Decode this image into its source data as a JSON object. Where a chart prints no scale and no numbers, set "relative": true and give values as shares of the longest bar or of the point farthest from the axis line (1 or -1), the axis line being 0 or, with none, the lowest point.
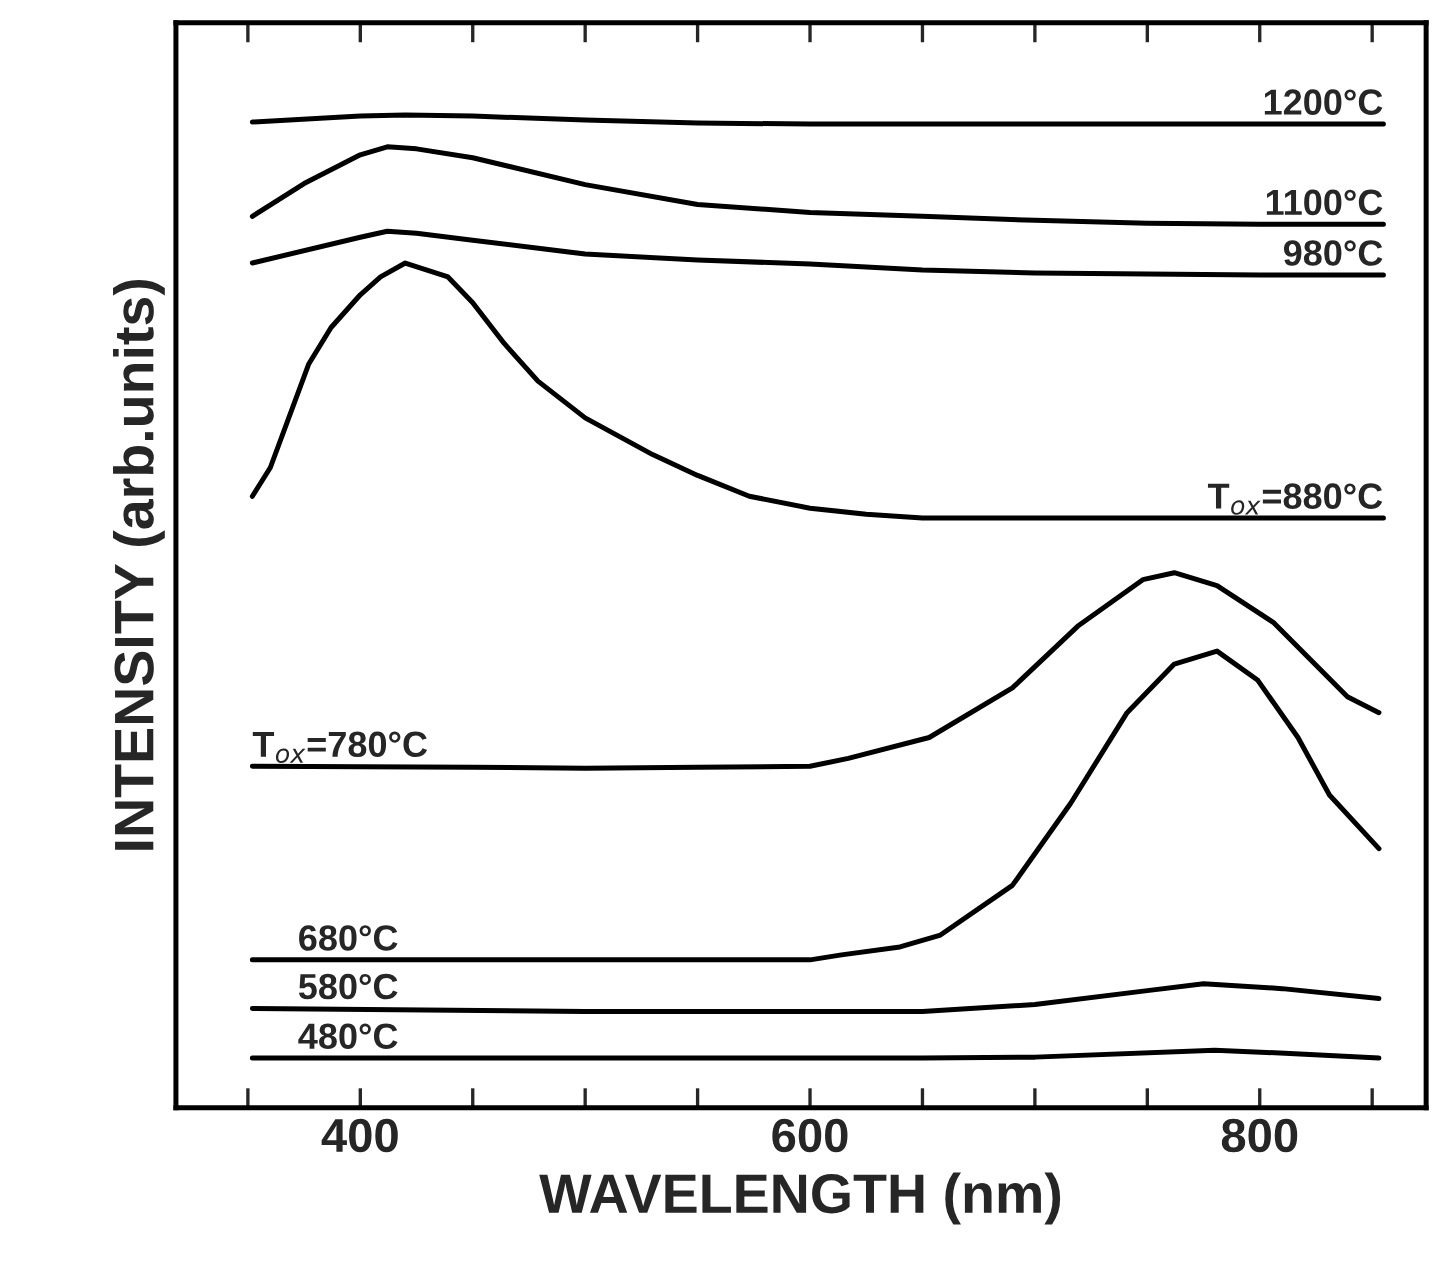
{
  "chart_data": {
    "type": "line",
    "relative": true,
    "xlabel": "WAVELENGTH (nm)",
    "ylabel": "INTENSITY (arb.units)",
    "xlim": [
      318,
      874
    ],
    "xticks": [
      {
        "value": 350,
        "label": null
      },
      400,
      {
        "value": 450,
        "label": null
      },
      {
        "value": 500,
        "label": null
      },
      {
        "value": 550,
        "label": null
      },
      600,
      {
        "value": 650,
        "label": null
      },
      {
        "value": 700,
        "label": null
      },
      {
        "value": 750,
        "label": null
      },
      800,
      {
        "value": 850,
        "label": null
      }
    ],
    "grid": false,
    "legend": false,
    "marker": "none",
    "line_style": "solid",
    "series": [
      {
        "name": "1200°C",
        "color": "#000000",
        "x": [
          352,
          400,
          420,
          450,
          500,
          550,
          600,
          700,
          800,
          855
        ],
        "values": [
          0.993,
          0.999,
          1.0,
          0.999,
          0.995,
          0.992,
          0.991,
          0.991,
          0.991,
          0.991
        ]
      },
      {
        "name": "1100°C",
        "color": "#000000",
        "x": [
          352,
          375,
          400,
          412,
          425,
          450,
          500,
          550,
          600,
          650,
          700,
          750,
          800,
          855
        ],
        "values": [
          0.898,
          0.931,
          0.96,
          0.968,
          0.966,
          0.957,
          0.93,
          0.91,
          0.902,
          0.898,
          0.894,
          0.891,
          0.89,
          0.89
        ]
      },
      {
        "name": "980°C",
        "color": "#000000",
        "x": [
          352,
          400,
          412,
          425,
          450,
          500,
          550,
          600,
          650,
          700,
          750,
          800,
          855
        ],
        "values": [
          0.851,
          0.877,
          0.883,
          0.881,
          0.874,
          0.86,
          0.854,
          0.85,
          0.844,
          0.841,
          0.84,
          0.839,
          0.839
        ]
      },
      {
        "name": "T$_{ox}$=880°C",
        "color": "#000000",
        "x": [
          352,
          360,
          377,
          387,
          400,
          409,
          420,
          439,
          450,
          464,
          479,
          500,
          530,
          550,
          573,
          600,
          625,
          650,
          700,
          855
        ],
        "values": [
          0.616,
          0.645,
          0.749,
          0.786,
          0.819,
          0.837,
          0.851,
          0.837,
          0.811,
          0.77,
          0.732,
          0.695,
          0.658,
          0.637,
          0.616,
          0.604,
          0.598,
          0.594,
          0.594,
          0.594
        ]
      },
      {
        "name": "T$_{ox}$=780°C",
        "color": "#000000",
        "x": [
          352,
          450,
          500,
          550,
          600,
          617,
          653,
          690,
          719,
          748,
          762,
          781,
          806,
          839,
          853
        ],
        "values": [
          0.344,
          0.343,
          0.342,
          0.343,
          0.344,
          0.352,
          0.373,
          0.423,
          0.485,
          0.532,
          0.539,
          0.526,
          0.489,
          0.414,
          0.398
        ]
      },
      {
        "name": "680°C",
        "color": "#000000",
        "x": [
          352,
          450,
          550,
          600,
          614,
          640,
          658,
          690,
          716,
          741,
          762,
          781,
          799,
          817,
          831,
          853
        ],
        "values": [
          0.149,
          0.149,
          0.149,
          0.149,
          0.154,
          0.162,
          0.174,
          0.224,
          0.307,
          0.398,
          0.447,
          0.46,
          0.431,
          0.373,
          0.315,
          0.261
        ]
      },
      {
        "name": "580°C",
        "color": "#000000",
        "x": [
          352,
          500,
          650,
          700,
          750,
          775,
          810,
          853
        ],
        "values": [
          0.1,
          0.097,
          0.097,
          0.104,
          0.118,
          0.125,
          0.12,
          0.11
        ]
      },
      {
        "name": "480°C",
        "color": "#000000",
        "x": [
          352,
          500,
          650,
          700,
          780,
          820,
          853
        ],
        "values": [
          0.05,
          0.05,
          0.05,
          0.051,
          0.058,
          0.054,
          0.05
        ]
      }
    ]
  }
}
